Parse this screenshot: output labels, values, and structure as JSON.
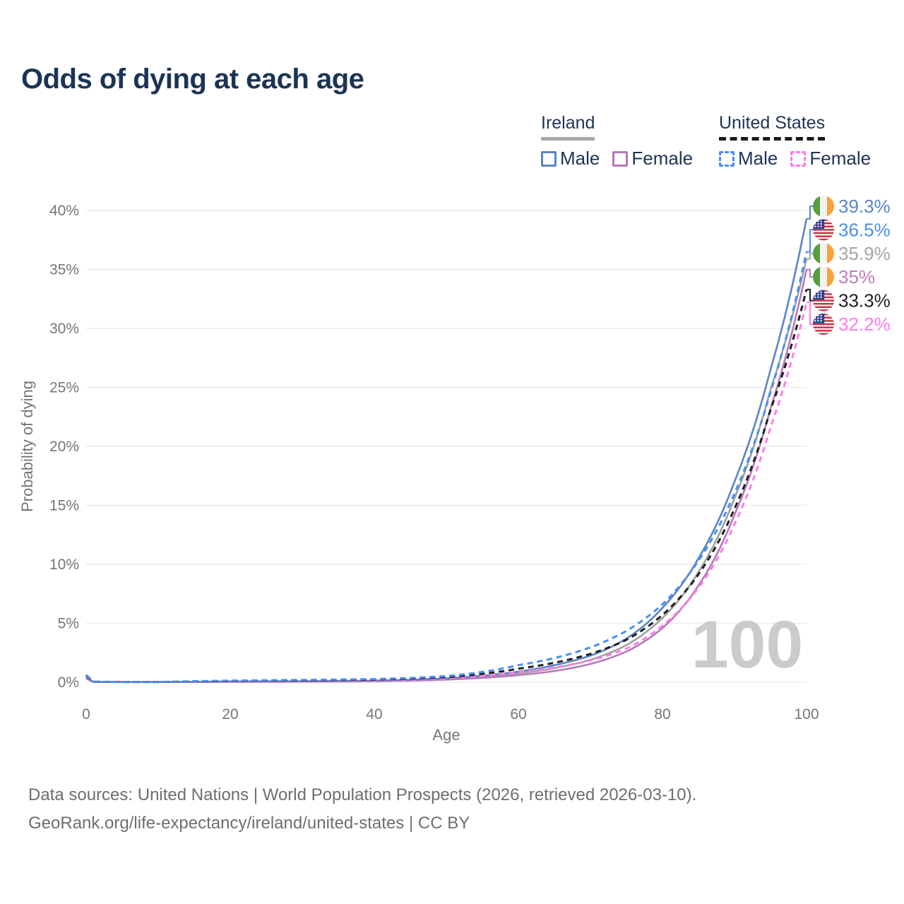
{
  "title": "Odds of dying at each age",
  "legend": {
    "groups": [
      {
        "id": "ireland",
        "label": "Ireland",
        "underline": {
          "style": "solid",
          "color": "#a8a8a8"
        },
        "items": [
          {
            "label": "Male",
            "color": "#5b84c6",
            "dash": false
          },
          {
            "label": "Female",
            "color": "#b778b9",
            "dash": false
          }
        ]
      },
      {
        "id": "united-states",
        "label": "United States",
        "underline": {
          "style": "dashed",
          "color": "#1a1a1a"
        },
        "items": [
          {
            "label": "Male",
            "color": "#4a8ff0",
            "dash": true
          },
          {
            "label": "Female",
            "color": "#ff7de9",
            "dash": true
          }
        ]
      }
    ]
  },
  "watermark": "100",
  "chart_data": {
    "type": "line",
    "title": "Odds of dying at each age",
    "xlabel": "Age",
    "ylabel": "Probability of dying",
    "xlim": [
      0,
      100
    ],
    "ylim": [
      0,
      40
    ],
    "x_ticks": [
      0,
      20,
      40,
      60,
      80,
      100
    ],
    "y_ticks": [
      0,
      5,
      10,
      15,
      20,
      25,
      30,
      35,
      40
    ],
    "y_tick_suffix": "%",
    "grid": true,
    "legend_position": "top-right",
    "sample_ages": [
      0,
      1,
      5,
      10,
      15,
      20,
      25,
      30,
      35,
      40,
      45,
      50,
      55,
      60,
      65,
      70,
      75,
      80,
      85,
      90,
      95,
      100
    ],
    "series": [
      {
        "id": "ireland-both",
        "name": "Ireland (both sexes)",
        "color": "#a0a0a0",
        "dash": false,
        "values": [
          0.37,
          0.025,
          0.018,
          0.018,
          0.03,
          0.05,
          0.06,
          0.07,
          0.085,
          0.115,
          0.175,
          0.27,
          0.46,
          0.75,
          1.2,
          1.9,
          3.15,
          5.45,
          9.35,
          15.6,
          24.8,
          35.9
        ]
      },
      {
        "id": "ireland-female",
        "name": "Ireland Female",
        "color": "#b778b9",
        "dash": false,
        "values": [
          0.33,
          0.02,
          0.015,
          0.015,
          0.02,
          0.03,
          0.035,
          0.045,
          0.06,
          0.09,
          0.14,
          0.22,
          0.37,
          0.6,
          0.95,
          1.55,
          2.6,
          4.6,
          8.2,
          14.2,
          23.2,
          35.0
        ]
      },
      {
        "id": "ireland-male",
        "name": "Ireland Male",
        "color": "#5b84c6",
        "dash": false,
        "values": [
          0.4,
          0.03,
          0.02,
          0.02,
          0.04,
          0.07,
          0.08,
          0.09,
          0.11,
          0.14,
          0.21,
          0.33,
          0.55,
          0.9,
          1.45,
          2.25,
          3.7,
          6.3,
          10.5,
          17.0,
          26.5,
          39.3
        ]
      },
      {
        "id": "us-female",
        "name": "United States Female",
        "color": "#ff7de9",
        "dash": true,
        "values": [
          0.52,
          0.035,
          0.02,
          0.02,
          0.045,
          0.06,
          0.08,
          0.1,
          0.13,
          0.17,
          0.23,
          0.33,
          0.54,
          0.85,
          1.25,
          1.85,
          2.85,
          4.8,
          8.0,
          13.4,
          21.6,
          32.2
        ]
      },
      {
        "id": "us-both",
        "name": "United States (both sexes)",
        "color": "#1f1f1f",
        "dash": true,
        "values": [
          0.57,
          0.038,
          0.025,
          0.025,
          0.07,
          0.1,
          0.13,
          0.15,
          0.18,
          0.22,
          0.3,
          0.43,
          0.71,
          1.15,
          1.65,
          2.4,
          3.6,
          5.7,
          9.15,
          14.7,
          23.1,
          33.3
        ]
      },
      {
        "id": "us-male",
        "name": "United States Male",
        "color": "#4a8ff0",
        "dash": true,
        "values": [
          0.62,
          0.04,
          0.03,
          0.03,
          0.09,
          0.14,
          0.17,
          0.2,
          0.23,
          0.27,
          0.36,
          0.52,
          0.88,
          1.45,
          2.05,
          2.95,
          4.35,
          6.6,
          10.3,
          16.0,
          24.6,
          36.5
        ]
      }
    ],
    "end_labels": [
      {
        "text": "39.3%",
        "value": 39.3,
        "flag": "ireland",
        "series": "ireland-male",
        "color": "#5b84c6"
      },
      {
        "text": "36.5%",
        "value": 36.5,
        "flag": "us",
        "series": "us-male",
        "color": "#4a8ff0"
      },
      {
        "text": "35.9%",
        "value": 35.9,
        "flag": "ireland",
        "series": "ireland-both",
        "color": "#a6a6a6"
      },
      {
        "text": "35%",
        "value": 35.0,
        "flag": "ireland",
        "series": "ireland-female",
        "color": "#bd7cbe"
      },
      {
        "text": "33.3%",
        "value": 33.3,
        "flag": "us",
        "series": "us-both",
        "color": "#1f1f1f"
      },
      {
        "text": "32.2%",
        "value": 32.2,
        "flag": "us",
        "series": "us-female",
        "color": "#ff7de9"
      }
    ],
    "flag_colors": {
      "ireland": {
        "green": "#579D3E",
        "white": "#f2f2f2",
        "orange": "#F9A13A"
      },
      "us": {
        "red": "#C62B3A",
        "white": "#f5f5f5",
        "blue": "#31418F",
        "stars": "#ffffff"
      }
    }
  },
  "footer": {
    "line1": "Data sources: United Nations | World Population Prospects (2026, retrieved 2026-03-10).",
    "line2": "GeoRank.org/life-expectancy/ireland/united-states | CC BY"
  }
}
